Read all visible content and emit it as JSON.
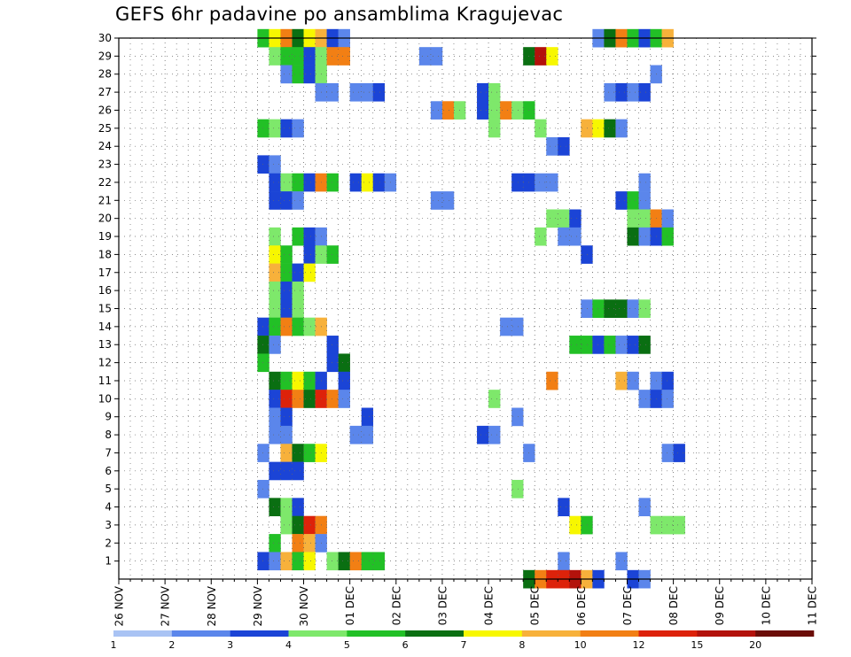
{
  "chart_data": {
    "type": "heatmap",
    "title": "GEFS 6hr padavine po ansamblima Kragujevac",
    "xlabel": "",
    "ylabel": "",
    "x_categories": [
      "26 NOV",
      "27 NOV",
      "28 NOV",
      "29 NOV",
      "30 NOV",
      "01 DEC",
      "02 DEC",
      "03 DEC",
      "04 DEC",
      "05 DEC",
      "06 DEC",
      "07 DEC",
      "08 DEC",
      "09 DEC",
      "10 DEC",
      "11 DEC"
    ],
    "y_ticks": [
      1,
      2,
      3,
      4,
      5,
      6,
      7,
      8,
      9,
      10,
      11,
      12,
      13,
      14,
      15,
      16,
      17,
      18,
      19,
      20,
      21,
      22,
      23,
      24,
      25,
      26,
      27,
      28,
      29,
      30
    ],
    "members_range": [
      0,
      30
    ],
    "x_steps_per_day": 4,
    "grid": true,
    "colorbar": {
      "levels": [
        "1",
        "2",
        "3",
        "4",
        "5",
        "6",
        "7",
        "8",
        "10",
        "12",
        "15",
        "20"
      ],
      "colors": [
        "#a9c3f4",
        "#5b86eb",
        "#1b44d6",
        "#7ee86b",
        "#22c026",
        "#0a6f12",
        "#f7f700",
        "#f7b13b",
        "#f27f14",
        "#dd220a",
        "#b3120c",
        "#6b0d07"
      ]
    },
    "cells": [
      [
        30,
        12,
        4
      ],
      [
        30,
        13,
        6
      ],
      [
        30,
        14,
        8
      ],
      [
        30,
        15,
        5
      ],
      [
        30,
        16,
        6
      ],
      [
        30,
        17,
        7
      ],
      [
        30,
        18,
        2
      ],
      [
        30,
        19,
        1
      ],
      [
        30,
        41,
        1
      ],
      [
        30,
        42,
        5
      ],
      [
        30,
        43,
        8
      ],
      [
        30,
        44,
        4
      ],
      [
        30,
        45,
        2
      ],
      [
        30,
        46,
        4
      ],
      [
        30,
        47,
        7
      ],
      [
        29,
        13,
        3
      ],
      [
        29,
        14,
        4
      ],
      [
        29,
        15,
        4
      ],
      [
        29,
        16,
        2
      ],
      [
        29,
        17,
        3
      ],
      [
        29,
        18,
        8
      ],
      [
        29,
        19,
        8
      ],
      [
        29,
        26,
        1
      ],
      [
        29,
        27,
        1
      ],
      [
        29,
        35,
        5
      ],
      [
        29,
        36,
        10
      ],
      [
        29,
        37,
        6
      ],
      [
        28,
        14,
        1
      ],
      [
        28,
        15,
        4
      ],
      [
        28,
        16,
        2
      ],
      [
        28,
        17,
        3
      ],
      [
        28,
        46,
        1
      ],
      [
        27,
        17,
        1
      ],
      [
        27,
        18,
        1
      ],
      [
        27,
        20,
        1
      ],
      [
        27,
        21,
        1
      ],
      [
        27,
        22,
        2
      ],
      [
        27,
        31,
        2
      ],
      [
        27,
        32,
        3
      ],
      [
        27,
        42,
        1
      ],
      [
        27,
        43,
        2
      ],
      [
        27,
        44,
        1
      ],
      [
        27,
        45,
        2
      ],
      [
        26,
        27,
        1
      ],
      [
        26,
        28,
        8
      ],
      [
        26,
        29,
        3
      ],
      [
        26,
        31,
        2
      ],
      [
        26,
        32,
        3
      ],
      [
        26,
        33,
        8
      ],
      [
        26,
        34,
        3
      ],
      [
        26,
        35,
        4
      ],
      [
        25,
        12,
        4
      ],
      [
        25,
        13,
        3
      ],
      [
        25,
        14,
        2
      ],
      [
        25,
        15,
        1
      ],
      [
        25,
        32,
        3
      ],
      [
        25,
        36,
        3
      ],
      [
        25,
        40,
        7
      ],
      [
        25,
        41,
        6
      ],
      [
        25,
        42,
        5
      ],
      [
        25,
        43,
        1
      ],
      [
        24,
        37,
        1
      ],
      [
        24,
        38,
        2
      ],
      [
        23,
        12,
        2
      ],
      [
        23,
        13,
        1
      ],
      [
        22,
        13,
        2
      ],
      [
        22,
        14,
        3
      ],
      [
        22,
        15,
        4
      ],
      [
        22,
        16,
        2
      ],
      [
        22,
        17,
        8
      ],
      [
        22,
        18,
        4
      ],
      [
        22,
        20,
        2
      ],
      [
        22,
        21,
        6
      ],
      [
        22,
        22,
        2
      ],
      [
        22,
        23,
        1
      ],
      [
        22,
        34,
        2
      ],
      [
        22,
        35,
        2
      ],
      [
        22,
        36,
        1
      ],
      [
        22,
        37,
        1
      ],
      [
        22,
        45,
        1
      ],
      [
        21,
        13,
        2
      ],
      [
        21,
        14,
        2
      ],
      [
        21,
        15,
        1
      ],
      [
        21,
        27,
        1
      ],
      [
        21,
        28,
        1
      ],
      [
        21,
        43,
        2
      ],
      [
        21,
        44,
        4
      ],
      [
        21,
        45,
        1
      ],
      [
        20,
        37,
        3
      ],
      [
        20,
        38,
        3
      ],
      [
        20,
        39,
        2
      ],
      [
        20,
        44,
        3
      ],
      [
        20,
        45,
        3
      ],
      [
        20,
        46,
        8
      ],
      [
        20,
        47,
        1
      ],
      [
        19,
        13,
        3
      ],
      [
        19,
        15,
        4
      ],
      [
        19,
        16,
        2
      ],
      [
        19,
        17,
        1
      ],
      [
        19,
        36,
        3
      ],
      [
        19,
        38,
        1
      ],
      [
        19,
        39,
        1
      ],
      [
        19,
        44,
        5
      ],
      [
        19,
        45,
        1
      ],
      [
        19,
        46,
        2
      ],
      [
        19,
        47,
        4
      ],
      [
        18,
        13,
        6
      ],
      [
        18,
        14,
        4
      ],
      [
        18,
        16,
        2
      ],
      [
        18,
        17,
        3
      ],
      [
        18,
        18,
        4
      ],
      [
        18,
        40,
        2
      ],
      [
        17,
        13,
        7
      ],
      [
        17,
        14,
        4
      ],
      [
        17,
        15,
        2
      ],
      [
        17,
        16,
        6
      ],
      [
        16,
        13,
        3
      ],
      [
        16,
        14,
        2
      ],
      [
        16,
        15,
        3
      ],
      [
        15,
        13,
        3
      ],
      [
        15,
        14,
        2
      ],
      [
        15,
        15,
        3
      ],
      [
        15,
        40,
        1
      ],
      [
        15,
        41,
        4
      ],
      [
        15,
        42,
        5
      ],
      [
        15,
        43,
        5
      ],
      [
        15,
        44,
        1
      ],
      [
        15,
        45,
        3
      ],
      [
        14,
        12,
        2
      ],
      [
        14,
        13,
        4
      ],
      [
        14,
        14,
        8
      ],
      [
        14,
        15,
        4
      ],
      [
        14,
        16,
        3
      ],
      [
        14,
        17,
        7
      ],
      [
        14,
        33,
        1
      ],
      [
        14,
        34,
        1
      ],
      [
        13,
        12,
        5
      ],
      [
        13,
        13,
        1
      ],
      [
        13,
        18,
        2
      ],
      [
        13,
        39,
        4
      ],
      [
        13,
        40,
        4
      ],
      [
        13,
        41,
        2
      ],
      [
        13,
        42,
        4
      ],
      [
        13,
        43,
        1
      ],
      [
        13,
        44,
        2
      ],
      [
        13,
        45,
        5
      ],
      [
        12,
        12,
        4
      ],
      [
        12,
        18,
        2
      ],
      [
        12,
        19,
        5
      ],
      [
        11,
        13,
        5
      ],
      [
        11,
        14,
        4
      ],
      [
        11,
        15,
        6
      ],
      [
        11,
        16,
        4
      ],
      [
        11,
        17,
        2
      ],
      [
        11,
        19,
        2
      ],
      [
        11,
        37,
        8
      ],
      [
        11,
        43,
        7
      ],
      [
        11,
        44,
        1
      ],
      [
        11,
        46,
        1
      ],
      [
        11,
        47,
        2
      ],
      [
        10,
        13,
        2
      ],
      [
        10,
        14,
        9
      ],
      [
        10,
        15,
        8
      ],
      [
        10,
        16,
        5
      ],
      [
        10,
        17,
        9
      ],
      [
        10,
        18,
        8
      ],
      [
        10,
        19,
        1
      ],
      [
        10,
        32,
        3
      ],
      [
        10,
        45,
        1
      ],
      [
        10,
        46,
        2
      ],
      [
        10,
        47,
        1
      ],
      [
        9,
        13,
        1
      ],
      [
        9,
        14,
        2
      ],
      [
        9,
        21,
        2
      ],
      [
        9,
        34,
        1
      ],
      [
        8,
        13,
        1
      ],
      [
        8,
        14,
        1
      ],
      [
        8,
        20,
        1
      ],
      [
        8,
        21,
        1
      ],
      [
        8,
        31,
        2
      ],
      [
        8,
        32,
        1
      ],
      [
        7,
        12,
        1
      ],
      [
        7,
        14,
        7
      ],
      [
        7,
        15,
        5
      ],
      [
        7,
        16,
        4
      ],
      [
        7,
        17,
        6
      ],
      [
        7,
        35,
        1
      ],
      [
        7,
        47,
        1
      ],
      [
        7,
        48,
        2
      ],
      [
        6,
        13,
        2
      ],
      [
        6,
        14,
        2
      ],
      [
        6,
        15,
        2
      ],
      [
        5,
        12,
        1
      ],
      [
        5,
        34,
        3
      ],
      [
        4,
        13,
        5
      ],
      [
        4,
        14,
        3
      ],
      [
        4,
        15,
        2
      ],
      [
        4,
        38,
        2
      ],
      [
        4,
        45,
        1
      ],
      [
        3,
        14,
        3
      ],
      [
        3,
        15,
        5
      ],
      [
        3,
        16,
        9
      ],
      [
        3,
        17,
        8
      ],
      [
        3,
        39,
        6
      ],
      [
        3,
        40,
        4
      ],
      [
        3,
        46,
        3
      ],
      [
        3,
        47,
        3
      ],
      [
        3,
        48,
        3
      ],
      [
        2,
        13,
        4
      ],
      [
        2,
        15,
        8
      ],
      [
        2,
        16,
        7
      ],
      [
        2,
        17,
        1
      ],
      [
        1,
        12,
        2
      ],
      [
        1,
        13,
        1
      ],
      [
        1,
        14,
        7
      ],
      [
        1,
        15,
        4
      ],
      [
        1,
        16,
        6
      ],
      [
        1,
        18,
        3
      ],
      [
        1,
        19,
        5
      ],
      [
        1,
        20,
        8
      ],
      [
        1,
        21,
        4
      ],
      [
        1,
        22,
        4
      ],
      [
        1,
        38,
        1
      ],
      [
        1,
        43,
        1
      ],
      [
        0,
        35,
        5
      ],
      [
        0,
        36,
        8
      ],
      [
        0,
        37,
        9
      ],
      [
        0,
        38,
        9
      ],
      [
        0,
        39,
        10
      ],
      [
        0,
        40,
        7
      ],
      [
        0,
        41,
        2
      ],
      [
        0,
        44,
        2
      ],
      [
        0,
        45,
        1
      ]
    ]
  }
}
